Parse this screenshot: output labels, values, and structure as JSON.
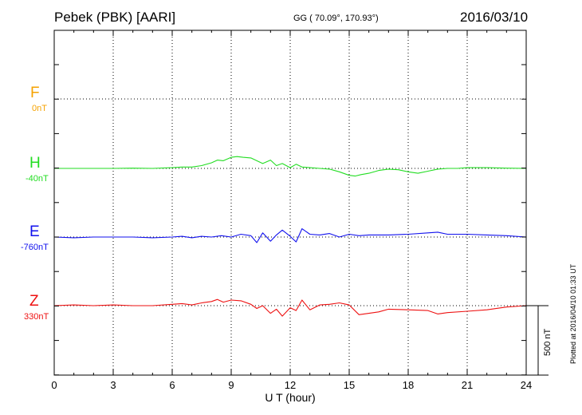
{
  "header": {
    "station": "Pebek (PBK)  [AARI]",
    "coords": "GG ( 70.09°, 170.93°)",
    "date": "2016/03/10"
  },
  "side_note": "Plotted at 2016/04/10 01:33 UT",
  "scale_label": "500 nT",
  "chart_data": {
    "type": "line",
    "xlabel": "U T (hour)",
    "x_ticks": [
      "0",
      "3",
      "6",
      "9",
      "12",
      "15",
      "18",
      "21",
      "24"
    ],
    "xlim": [
      0,
      24
    ],
    "grid": true,
    "scale_bar_nT": 500,
    "series": [
      {
        "name": "F",
        "offset_label": "0nT",
        "color": "#f5a200",
        "x": [],
        "y": []
      },
      {
        "name": "H",
        "offset_label": "-40nT",
        "color": "#22dd22",
        "x": [
          0,
          1,
          2,
          3,
          4,
          5,
          6,
          6.5,
          7,
          7.5,
          8,
          8.3,
          8.6,
          9,
          9.3,
          9.6,
          10,
          10.3,
          10.6,
          11,
          11.3,
          11.6,
          12,
          12.3,
          12.6,
          13,
          13.5,
          14,
          14.5,
          15,
          15.3,
          15.6,
          16,
          16.5,
          17,
          17.5,
          18,
          18.5,
          19,
          19.5,
          20,
          20.5,
          21,
          22,
          23,
          24
        ],
        "y": [
          0,
          0,
          0,
          0,
          2,
          0,
          5,
          10,
          10,
          20,
          40,
          60,
          55,
          80,
          85,
          80,
          75,
          55,
          35,
          60,
          20,
          35,
          5,
          30,
          10,
          5,
          0,
          -5,
          -25,
          -50,
          -55,
          -45,
          -35,
          -15,
          -5,
          -10,
          -25,
          -35,
          -20,
          -5,
          0,
          0,
          5,
          5,
          2,
          0
        ]
      },
      {
        "name": "E",
        "offset_label": "-760nT",
        "color": "#1111ee",
        "x": [
          0,
          1,
          2,
          3,
          4,
          5,
          6,
          6.5,
          7,
          7.5,
          8,
          8.5,
          9,
          9.5,
          10,
          10.3,
          10.6,
          11,
          11.3,
          11.6,
          12,
          12.3,
          12.6,
          13,
          13.5,
          14,
          14.5,
          15,
          15.5,
          16,
          17,
          18,
          19,
          19.5,
          20,
          21,
          22,
          23,
          24
        ],
        "y": [
          0,
          -5,
          0,
          0,
          0,
          -5,
          0,
          5,
          -5,
          5,
          0,
          10,
          0,
          20,
          10,
          -40,
          30,
          -30,
          15,
          50,
          5,
          -35,
          60,
          20,
          15,
          25,
          0,
          20,
          10,
          15,
          15,
          20,
          30,
          35,
          20,
          20,
          15,
          10,
          0
        ]
      },
      {
        "name": "Z",
        "offset_label": "330nT",
        "color": "#ee1111",
        "x": [
          0,
          1,
          2,
          3,
          4,
          5,
          6,
          6.5,
          7,
          7.5,
          8,
          8.3,
          8.6,
          9,
          9.5,
          10,
          10.3,
          10.6,
          11,
          11.3,
          11.6,
          12,
          12.3,
          12.6,
          13,
          13.5,
          14,
          14.5,
          15,
          15.5,
          16,
          16.5,
          17,
          18,
          19,
          19.5,
          20,
          21,
          22,
          23,
          24
        ],
        "y": [
          0,
          5,
          0,
          5,
          0,
          0,
          10,
          15,
          5,
          20,
          30,
          45,
          25,
          40,
          35,
          10,
          -20,
          0,
          -55,
          -25,
          -75,
          -15,
          -35,
          40,
          -30,
          5,
          10,
          20,
          5,
          -65,
          -55,
          -45,
          -25,
          -30,
          -35,
          -60,
          -50,
          -40,
          -30,
          -10,
          0
        ]
      }
    ]
  }
}
